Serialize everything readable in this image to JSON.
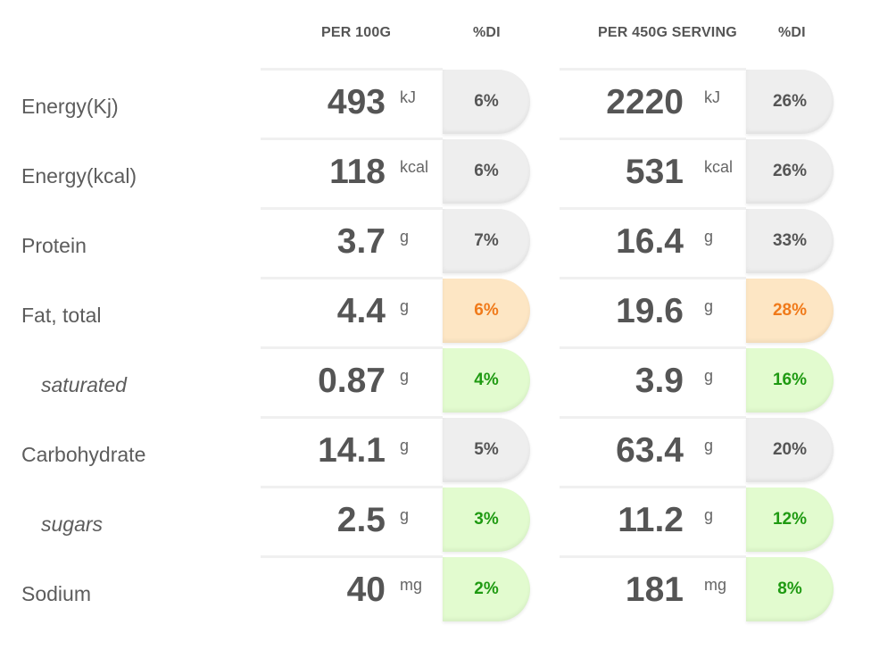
{
  "headers": {
    "per100": "PER 100G",
    "di1": "%DI",
    "perserving": "PER 450G SERVING",
    "di2": "%DI"
  },
  "colors": {
    "grey": "#eeeeee",
    "orange": "#fde6c4",
    "green": "#e2fbcf"
  },
  "rows": [
    {
      "label": "Energy(Kj)",
      "v100": "493",
      "u100": "kJ",
      "di100": "6%",
      "c100": "grey",
      "vserv": "2220",
      "userv": "kJ",
      "diserv": "26%",
      "cserv": "grey"
    },
    {
      "label": "Energy(kcal)",
      "v100": "118",
      "u100": "kcal",
      "di100": "6%",
      "c100": "grey",
      "vserv": "531",
      "userv": "kcal",
      "diserv": "26%",
      "cserv": "grey"
    },
    {
      "label": "Protein",
      "v100": "3.7",
      "u100": "g",
      "di100": "7%",
      "c100": "grey",
      "vserv": "16.4",
      "userv": "g",
      "diserv": "33%",
      "cserv": "grey"
    },
    {
      "label": "Fat, total",
      "v100": "4.4",
      "u100": "g",
      "di100": "6%",
      "c100": "orange",
      "vserv": "19.6",
      "userv": "g",
      "diserv": "28%",
      "cserv": "orange"
    },
    {
      "label": "saturated",
      "v100": "0.87",
      "u100": "g",
      "di100": "4%",
      "c100": "green",
      "vserv": "3.9",
      "userv": "g",
      "diserv": "16%",
      "cserv": "green"
    },
    {
      "label": "Carbohydrate",
      "v100": "14.1",
      "u100": "g",
      "di100": "5%",
      "c100": "grey",
      "vserv": "63.4",
      "userv": "g",
      "diserv": "20%",
      "cserv": "grey"
    },
    {
      "label": "sugars",
      "v100": "2.5",
      "u100": "g",
      "di100": "3%",
      "c100": "green",
      "vserv": "11.2",
      "userv": "g",
      "diserv": "12%",
      "cserv": "green"
    },
    {
      "label": "Sodium",
      "v100": "40",
      "u100": "mg",
      "di100": "2%",
      "c100": "green",
      "vserv": "181",
      "userv": "mg",
      "diserv": "8%",
      "cserv": "green"
    }
  ]
}
